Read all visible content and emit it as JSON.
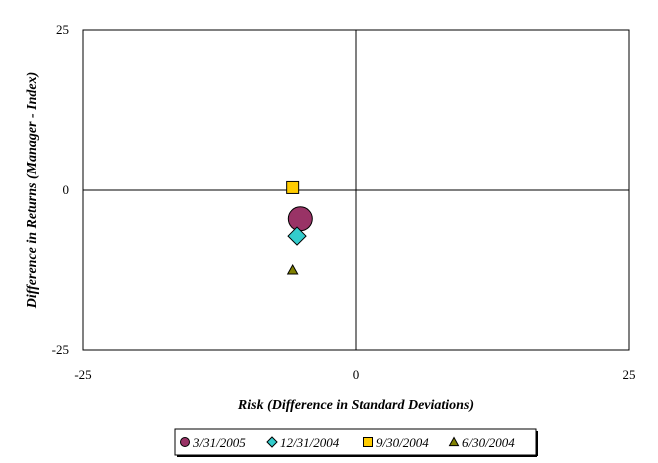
{
  "chart_data": {
    "type": "scatter",
    "title": "",
    "xlabel": "Risk (Difference in Standard Deviations)",
    "ylabel": "Difference in Returns (Manager - Index)",
    "xlim": [
      -25,
      25
    ],
    "ylim": [
      -25,
      25
    ],
    "x_ticks": [
      "-25",
      "0",
      "25"
    ],
    "y_ticks": [
      "25",
      "0",
      "-25"
    ],
    "grid": false,
    "reference_lines": {
      "x": 0,
      "y": 0
    },
    "legend_position": "bottom",
    "series": [
      {
        "name": "3/31/2005",
        "marker": "circle",
        "color": "#993366",
        "points": [
          {
            "x": -5.1,
            "y": -4.5
          }
        ]
      },
      {
        "name": "12/31/2004",
        "marker": "diamond",
        "color": "#33CCCC",
        "points": [
          {
            "x": -5.4,
            "y": -7.2
          }
        ]
      },
      {
        "name": "9/30/2004",
        "marker": "square",
        "color": "#FFCC00",
        "points": [
          {
            "x": -5.8,
            "y": 0.4
          }
        ]
      },
      {
        "name": "6/30/2004",
        "marker": "triangle",
        "color": "#808000",
        "points": [
          {
            "x": -5.8,
            "y": -12.5
          }
        ]
      }
    ]
  }
}
